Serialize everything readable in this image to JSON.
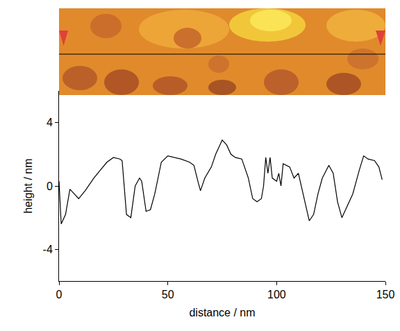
{
  "chart_data": {
    "type": "line",
    "x_label": "distance / nm",
    "y_label": "height / nm",
    "color": "#000000",
    "x": [
      0,
      0.5,
      1,
      3,
      5,
      7,
      9,
      12,
      16,
      19,
      22,
      25,
      28,
      29,
      31,
      33,
      35,
      37,
      38,
      40,
      42,
      44,
      47,
      50,
      53,
      56,
      60,
      62,
      64,
      65,
      67,
      70,
      72,
      75,
      77,
      79,
      81,
      84,
      87,
      89,
      91,
      93,
      94,
      95,
      96,
      97,
      98,
      100,
      101,
      102,
      103,
      106,
      108,
      110,
      113,
      115,
      117,
      119,
      121,
      124,
      126,
      128,
      130,
      132,
      135,
      138,
      140,
      142,
      145,
      147,
      148.5
    ],
    "values": [
      0.3,
      -1.2,
      -2.4,
      -1.8,
      -0.2,
      -0.5,
      -0.8,
      -0.3,
      0.5,
      1.0,
      1.5,
      1.8,
      1.7,
      1.6,
      -1.8,
      -2.0,
      0.0,
      0.5,
      0.3,
      -1.6,
      -1.5,
      -0.5,
      1.5,
      1.9,
      1.8,
      1.7,
      1.5,
      1.3,
      0.2,
      -0.3,
      0.5,
      1.2,
      2.0,
      2.9,
      2.6,
      2.0,
      1.8,
      1.7,
      0.5,
      -0.8,
      -1.0,
      -0.8,
      0.0,
      1.8,
      0.8,
      1.8,
      0.5,
      0.3,
      0.8,
      0.0,
      1.4,
      1.2,
      0.5,
      0.8,
      -1.0,
      -2.2,
      -1.8,
      -0.5,
      0.5,
      1.3,
      0.8,
      -1.0,
      -2.0,
      -1.4,
      -0.5,
      1.0,
      1.9,
      1.7,
      1.6,
      1.2,
      0.4
    ],
    "xlim": [
      0,
      150
    ],
    "xticks": [
      0,
      50,
      100,
      150
    ],
    "ylim": [
      -6,
      6
    ],
    "yticks": [
      -4,
      0,
      4
    ],
    "grid": false
  }
}
